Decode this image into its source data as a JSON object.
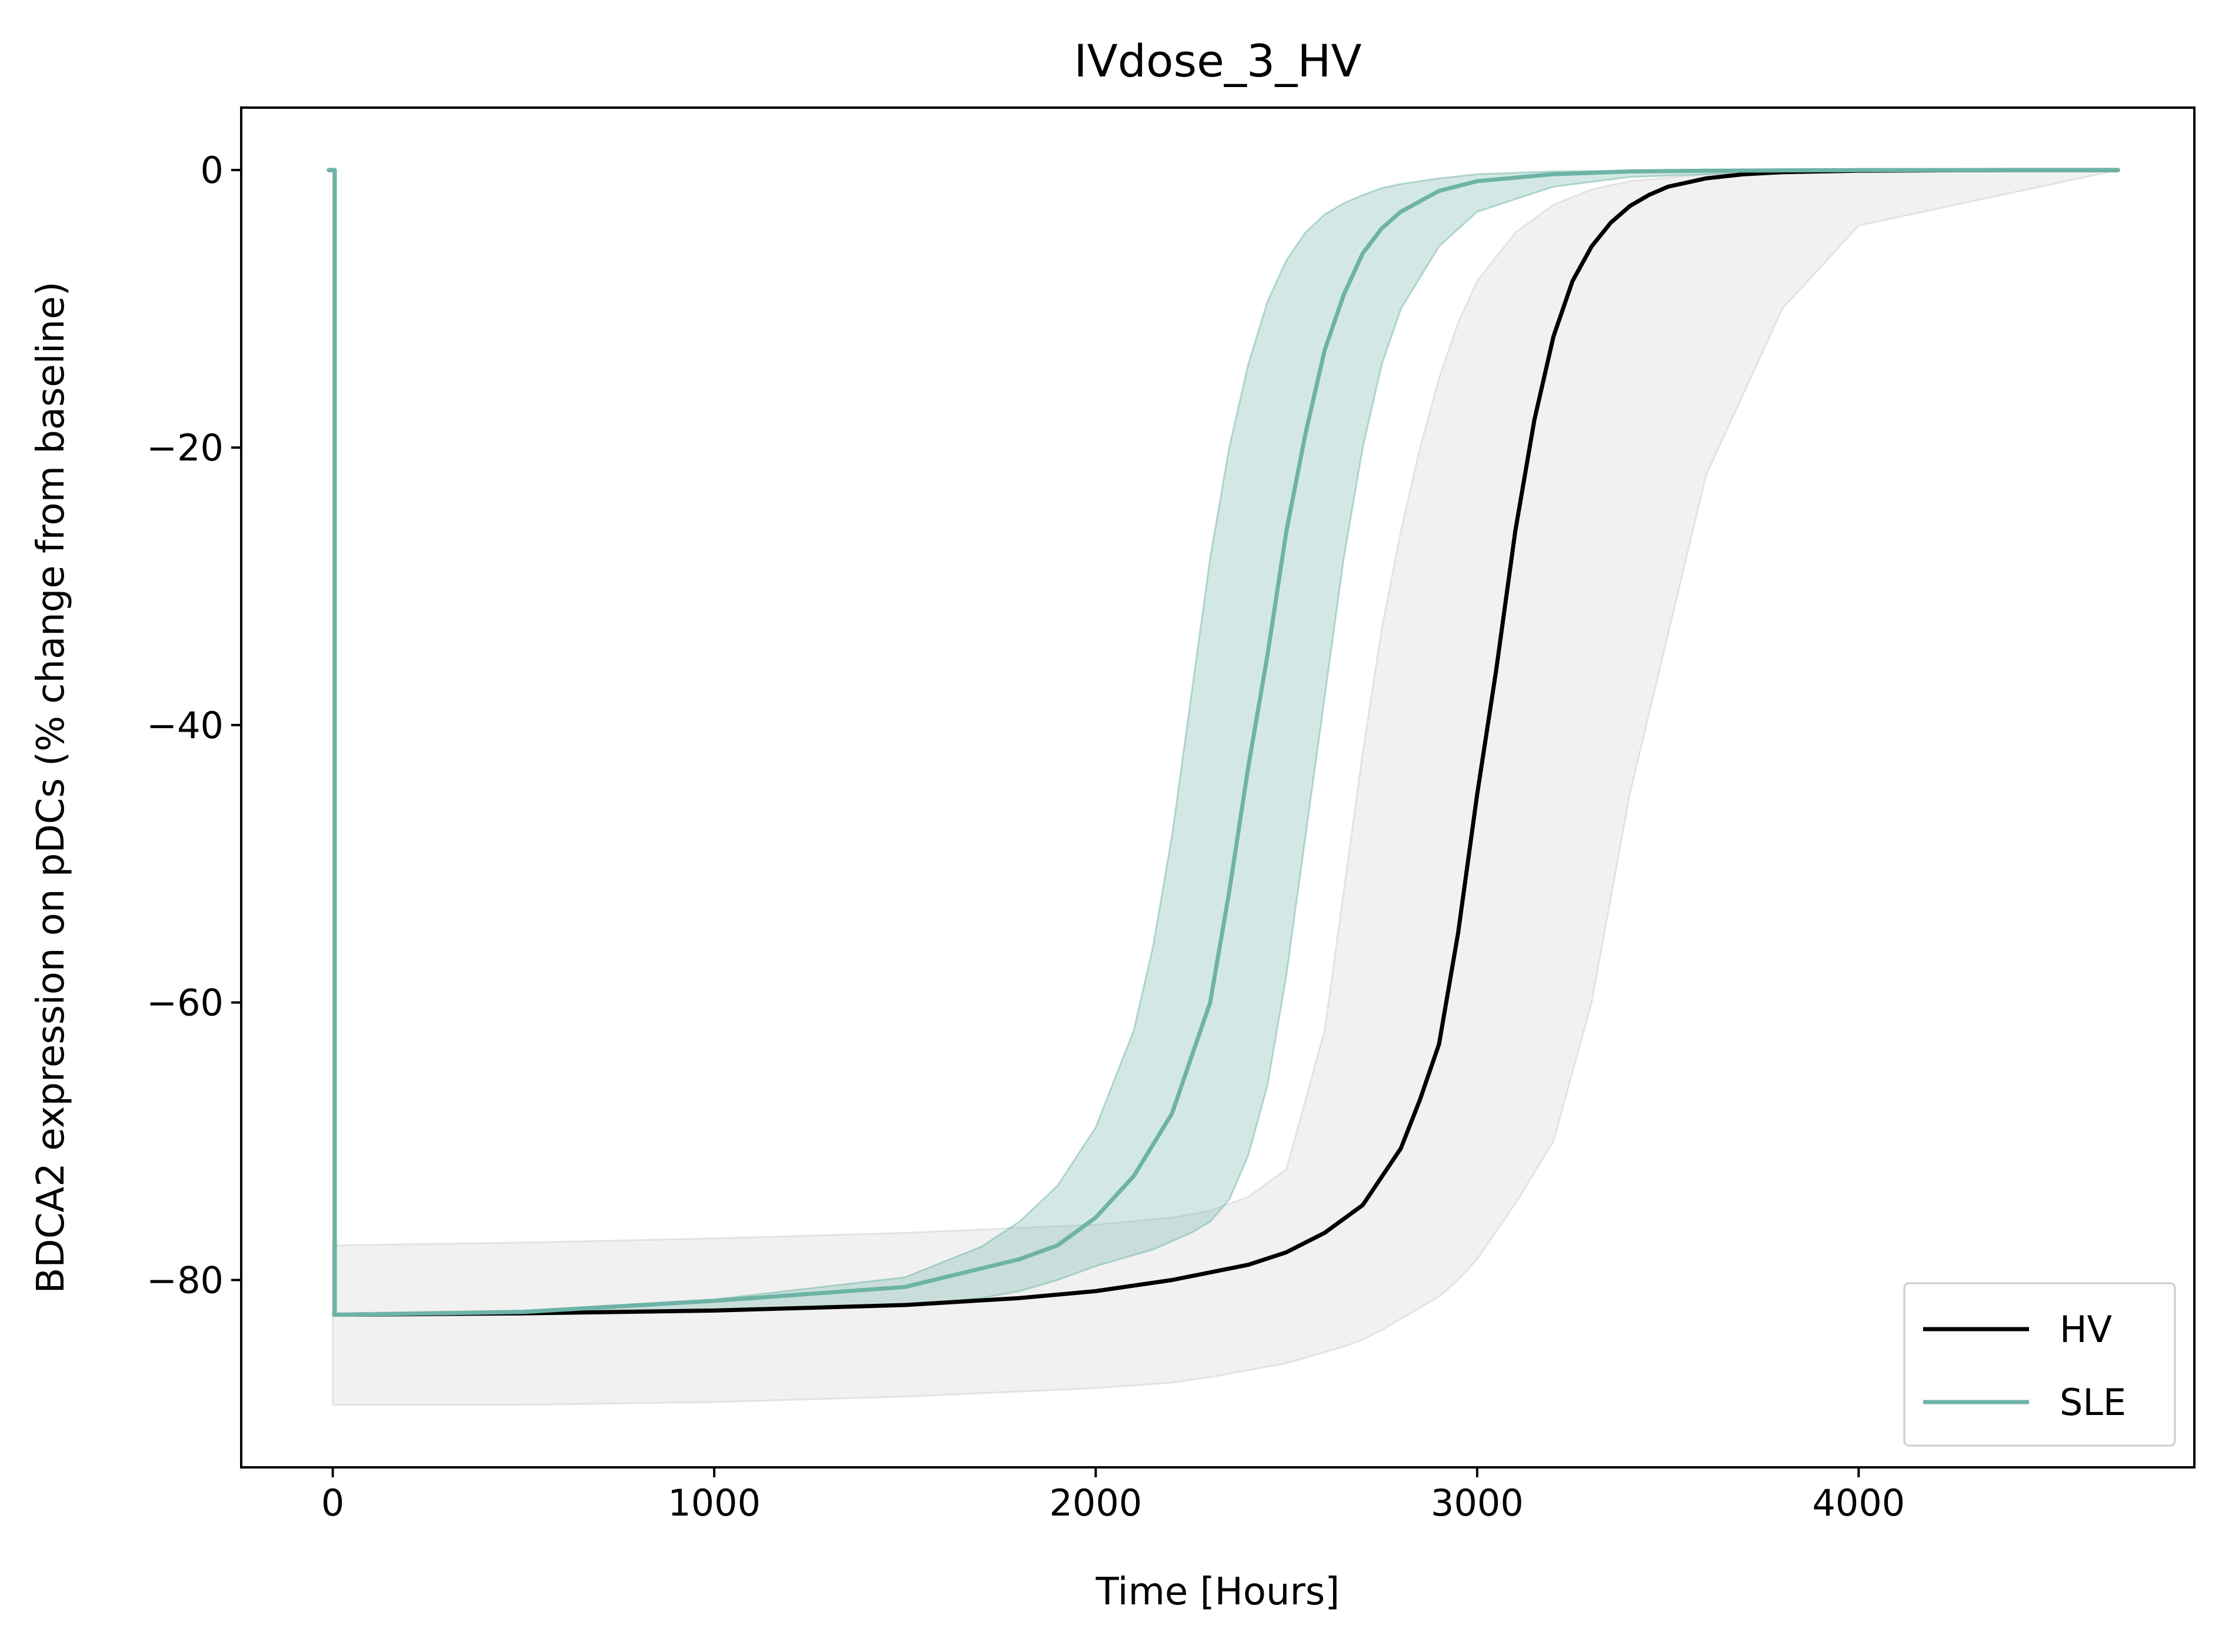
{
  "chart_data": {
    "type": "line",
    "title": "IVdose_3_HV",
    "xlabel": "Time [Hours]",
    "ylabel": "BDCA2 expression on pDCs (% change from baseline)",
    "xlim": [
      -240,
      4880
    ],
    "ylim": [
      -93.5,
      4.5
    ],
    "xticks": [
      0,
      1000,
      2000,
      3000,
      4000
    ],
    "xtick_labels": [
      "0",
      "1000",
      "2000",
      "3000",
      "4000"
    ],
    "yticks": [
      0,
      -20,
      -40,
      -60,
      -80
    ],
    "ytick_labels": [
      "0",
      "−20",
      "−40",
      "−60",
      "−80"
    ],
    "grid": false,
    "legend_position": "lower-right",
    "series": [
      {
        "name": "HV",
        "color": "#000000",
        "x": [
          -10,
          0,
          5,
          5,
          50,
          500,
          1000,
          1500,
          1800,
          2000,
          2200,
          2400,
          2500,
          2600,
          2700,
          2800,
          2850,
          2900,
          2950,
          3000,
          3050,
          3100,
          3150,
          3200,
          3250,
          3300,
          3350,
          3400,
          3450,
          3500,
          3600,
          3700,
          3800,
          4000,
          4200,
          4400,
          4680
        ],
        "y": [
          0,
          0,
          0,
          -82.5,
          -82.5,
          -82.4,
          -82.2,
          -81.8,
          -81.3,
          -80.8,
          -80.0,
          -78.9,
          -78.0,
          -76.6,
          -74.6,
          -70.5,
          -67.0,
          -63.0,
          -55.0,
          -45.0,
          -36.0,
          -26.0,
          -18.0,
          -12.0,
          -8.0,
          -5.5,
          -3.8,
          -2.6,
          -1.8,
          -1.2,
          -0.6,
          -0.3,
          -0.15,
          -0.05,
          -0.02,
          0,
          0
        ]
      },
      {
        "name": "SLE",
        "color": "#6db3a6",
        "x": [
          -10,
          0,
          5,
          5,
          50,
          500,
          1000,
          1500,
          1800,
          1900,
          2000,
          2100,
          2200,
          2300,
          2350,
          2400,
          2450,
          2500,
          2550,
          2600,
          2650,
          2700,
          2750,
          2800,
          2900,
          3000,
          3200,
          3400,
          3600,
          4000,
          4680
        ],
        "y": [
          0,
          0,
          0,
          -82.5,
          -82.5,
          -82.3,
          -81.5,
          -80.5,
          -78.5,
          -77.5,
          -75.5,
          -72.5,
          -68.0,
          -60.0,
          -52.0,
          -43.0,
          -35.0,
          -26.0,
          -19.0,
          -13.0,
          -9.0,
          -6.0,
          -4.2,
          -3.0,
          -1.5,
          -0.8,
          -0.3,
          -0.1,
          -0.05,
          0,
          0
        ]
      }
    ],
    "bands": [
      {
        "color": "#bdbdbd",
        "opacity": 0.22,
        "x": [
          0,
          500,
          1000,
          1500,
          2000,
          2200,
          2300,
          2400,
          2500,
          2600,
          2650,
          2700,
          2750,
          2800,
          2850,
          2900,
          2950,
          3000,
          3100,
          3200,
          3300,
          3400,
          3600,
          3800,
          4000,
          4680
        ],
        "upper": [
          -77.5,
          -77.3,
          -77.0,
          -76.6,
          -76.0,
          -75.5,
          -75.0,
          -74.0,
          -72.0,
          -62.0,
          -52.0,
          -42.0,
          -33.0,
          -26.0,
          -20.0,
          -15.0,
          -11.0,
          -8.0,
          -4.5,
          -2.5,
          -1.4,
          -0.8,
          -0.3,
          -0.1,
          -0.03,
          0
        ],
        "lower": [
          -89.0,
          -89.0,
          -88.8,
          -88.4,
          -87.8,
          -87.4,
          -87.0,
          -86.5,
          -86.0,
          -85.2,
          -84.8,
          -84.3,
          -83.6,
          -82.8,
          -82.0,
          -81.2,
          -80.0,
          -78.5,
          -74.5,
          -70.0,
          -60.0,
          -45.0,
          -22.0,
          -10.0,
          -4.0,
          0
        ]
      },
      {
        "color": "#6db3a6",
        "opacity": 0.3,
        "x": [
          0,
          500,
          1000,
          1500,
          1700,
          1800,
          1900,
          2000,
          2100,
          2150,
          2200,
          2250,
          2300,
          2350,
          2400,
          2450,
          2500,
          2550,
          2600,
          2650,
          2700,
          2750,
          2800,
          2900,
          3000,
          3200,
          3400,
          3800,
          4680
        ],
        "upper": [
          -82.4,
          -82.2,
          -81.4,
          -79.8,
          -77.6,
          -75.8,
          -73.2,
          -69.0,
          -62.0,
          -56.0,
          -48.0,
          -38.0,
          -28.0,
          -20.0,
          -14.0,
          -9.5,
          -6.5,
          -4.5,
          -3.2,
          -2.4,
          -1.8,
          -1.3,
          -1.0,
          -0.6,
          -0.3,
          -0.1,
          -0.05,
          0,
          0
        ],
        "lower": [
          -82.5,
          -82.5,
          -82.3,
          -81.8,
          -81.3,
          -80.8,
          -80.0,
          -79.0,
          -78.2,
          -77.8,
          -77.2,
          -76.6,
          -75.8,
          -74.2,
          -71.0,
          -66.0,
          -58.0,
          -48.0,
          -38.0,
          -28.0,
          -20.0,
          -14.0,
          -10.0,
          -5.5,
          -3.0,
          -1.2,
          -0.5,
          -0.1,
          0
        ]
      }
    ]
  }
}
